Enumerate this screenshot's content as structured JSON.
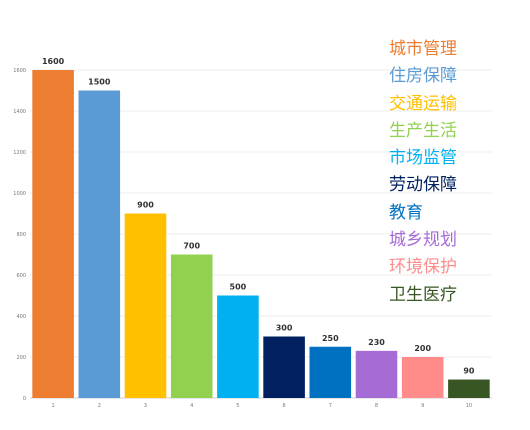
{
  "chart_data": {
    "type": "bar",
    "categories": [
      "1",
      "2",
      "3",
      "4",
      "5",
      "6",
      "7",
      "8",
      "9",
      "10"
    ],
    "values": [
      1600,
      1500,
      900,
      700,
      500,
      300,
      250,
      230,
      200,
      90
    ],
    "bar_colors": [
      "#ED7D31",
      "#5B9BD5",
      "#FFC000",
      "#92D050",
      "#00B0F0",
      "#002060",
      "#0070C0",
      "#A56CD6",
      "#FF8B8B",
      "#375623"
    ],
    "ylim": [
      0,
      1600
    ],
    "yticks": [
      "0",
      "200",
      "400",
      "600",
      "800",
      "1000",
      "1200",
      "1400",
      "1600"
    ],
    "grid": true,
    "legend_position": "right",
    "legend": [
      {
        "label": "城市管理",
        "color": "#ED7D31"
      },
      {
        "label": "住房保障",
        "color": "#5B9BD5"
      },
      {
        "label": "交通运输",
        "color": "#FFC000"
      },
      {
        "label": "生产生活",
        "color": "#92D050"
      },
      {
        "label": "市场监管",
        "color": "#00B0F0"
      },
      {
        "label": "劳动保障",
        "color": "#002060"
      },
      {
        "label": "教育",
        "color": "#0070C0"
      },
      {
        "label": "城乡规划",
        "color": "#A56CD6"
      },
      {
        "label": "环境保护",
        "color": "#FF8B8B"
      },
      {
        "label": "卫生医疗",
        "color": "#375623"
      }
    ]
  }
}
